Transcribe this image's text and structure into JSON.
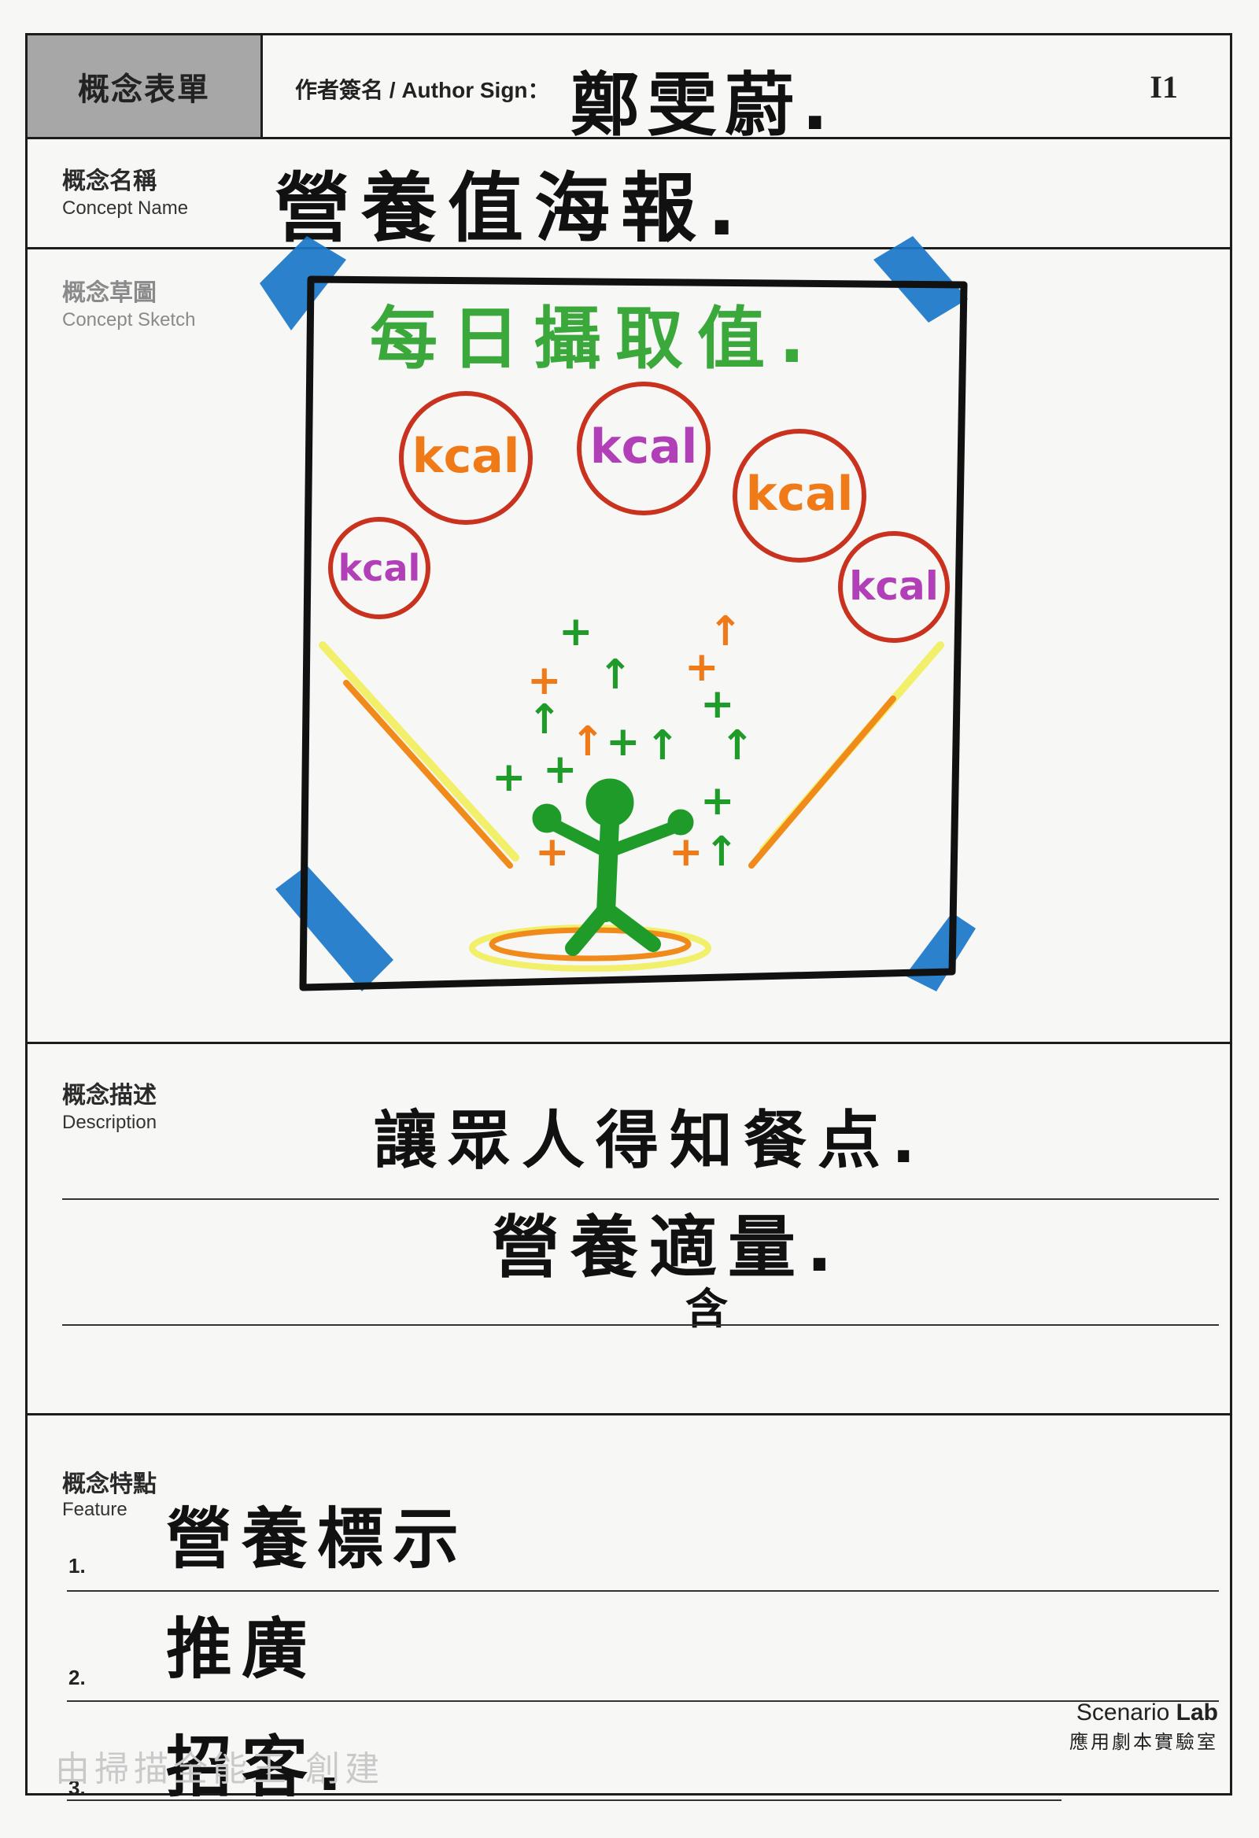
{
  "header": {
    "form_title": "概念表單",
    "author_label": "作者簽名 / Author Sign：",
    "author_signature": "鄭雯蔚.",
    "sheet_id": "I1"
  },
  "concept_name": {
    "label_zh": "概念名稱",
    "label_en": "Concept Name",
    "value": "營養值海報."
  },
  "concept_sketch": {
    "label_zh": "概念草圖",
    "label_en": "Concept Sketch",
    "poster_title": "每日攝取值.",
    "bubbles": [
      "kcal",
      "kcal",
      "kcal",
      "kcal",
      "kcal"
    ],
    "colors": {
      "title": "#3aa83a",
      "bubble_ring": "#c8321e",
      "text_orange": "#f07a18",
      "text_purple": "#b13fb8",
      "figure": "#1f9b2a",
      "tape": "#1976c8",
      "rays_orange": "#f08a1a",
      "rays_yellow": "#f2ef6a"
    }
  },
  "description": {
    "label_zh": "概念描述",
    "label_en": "Description",
    "lines": [
      "讓眾人得知餐点.",
      "營養適量.",
      "含"
    ]
  },
  "features": {
    "label_zh": "概念特點",
    "label_en": "Feature",
    "items": [
      {
        "num": "1.",
        "text": "營養標示"
      },
      {
        "num": "2.",
        "text": "推廣"
      },
      {
        "num": "3.",
        "text": "招客."
      }
    ]
  },
  "footer": {
    "brand_prefix": "Scenario ",
    "brand_bold": "Lab",
    "brand_zh": "應用劇本實驗室",
    "watermark": "由掃描全能王 創建"
  }
}
